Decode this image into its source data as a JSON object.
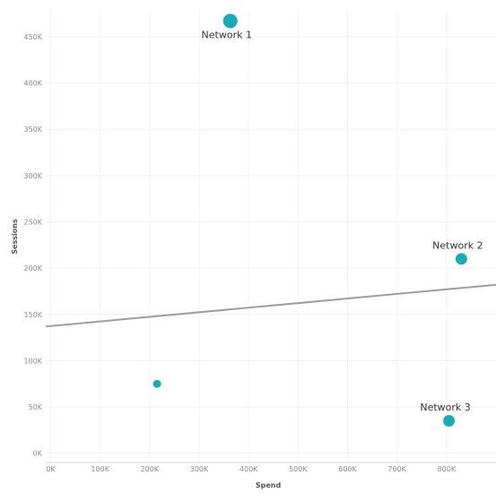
{
  "chart_data": {
    "type": "scatter",
    "title": "",
    "xlabel": "Spend",
    "ylabel": "Sessions",
    "xlim": [
      -10000,
      900000
    ],
    "ylim": [
      -10000,
      480000
    ],
    "x_ticks": [
      0,
      100000,
      200000,
      300000,
      400000,
      500000,
      600000,
      700000,
      800000
    ],
    "x_tick_labels": [
      "0K",
      "100K",
      "200K",
      "300K",
      "400K",
      "500K",
      "600K",
      "700K",
      "800K"
    ],
    "y_ticks": [
      0,
      50000,
      100000,
      150000,
      200000,
      250000,
      300000,
      350000,
      400000,
      450000
    ],
    "y_tick_labels": [
      "0K",
      "50K",
      "100K",
      "150K",
      "200K",
      "250K",
      "300K",
      "350K",
      "400K",
      "450K"
    ],
    "grid": true,
    "legend": "none",
    "series": [
      {
        "color": "#1aabb8",
        "points": [
          {
            "x": 363000,
            "y": 467000,
            "label": "Network 1",
            "size": "large"
          },
          {
            "x": 830000,
            "y": 210000,
            "label": "Network 2",
            "size": "medium"
          },
          {
            "x": 805000,
            "y": 35000,
            "label": "Network 3",
            "size": "medium"
          },
          {
            "x": 215000,
            "y": 75000,
            "label": "",
            "size": "small"
          }
        ]
      }
    ],
    "trend_line": {
      "color": "#9e9e9e",
      "start": {
        "x": -10000,
        "y": 137000
      },
      "end": {
        "x": 900000,
        "y": 182000
      }
    }
  }
}
